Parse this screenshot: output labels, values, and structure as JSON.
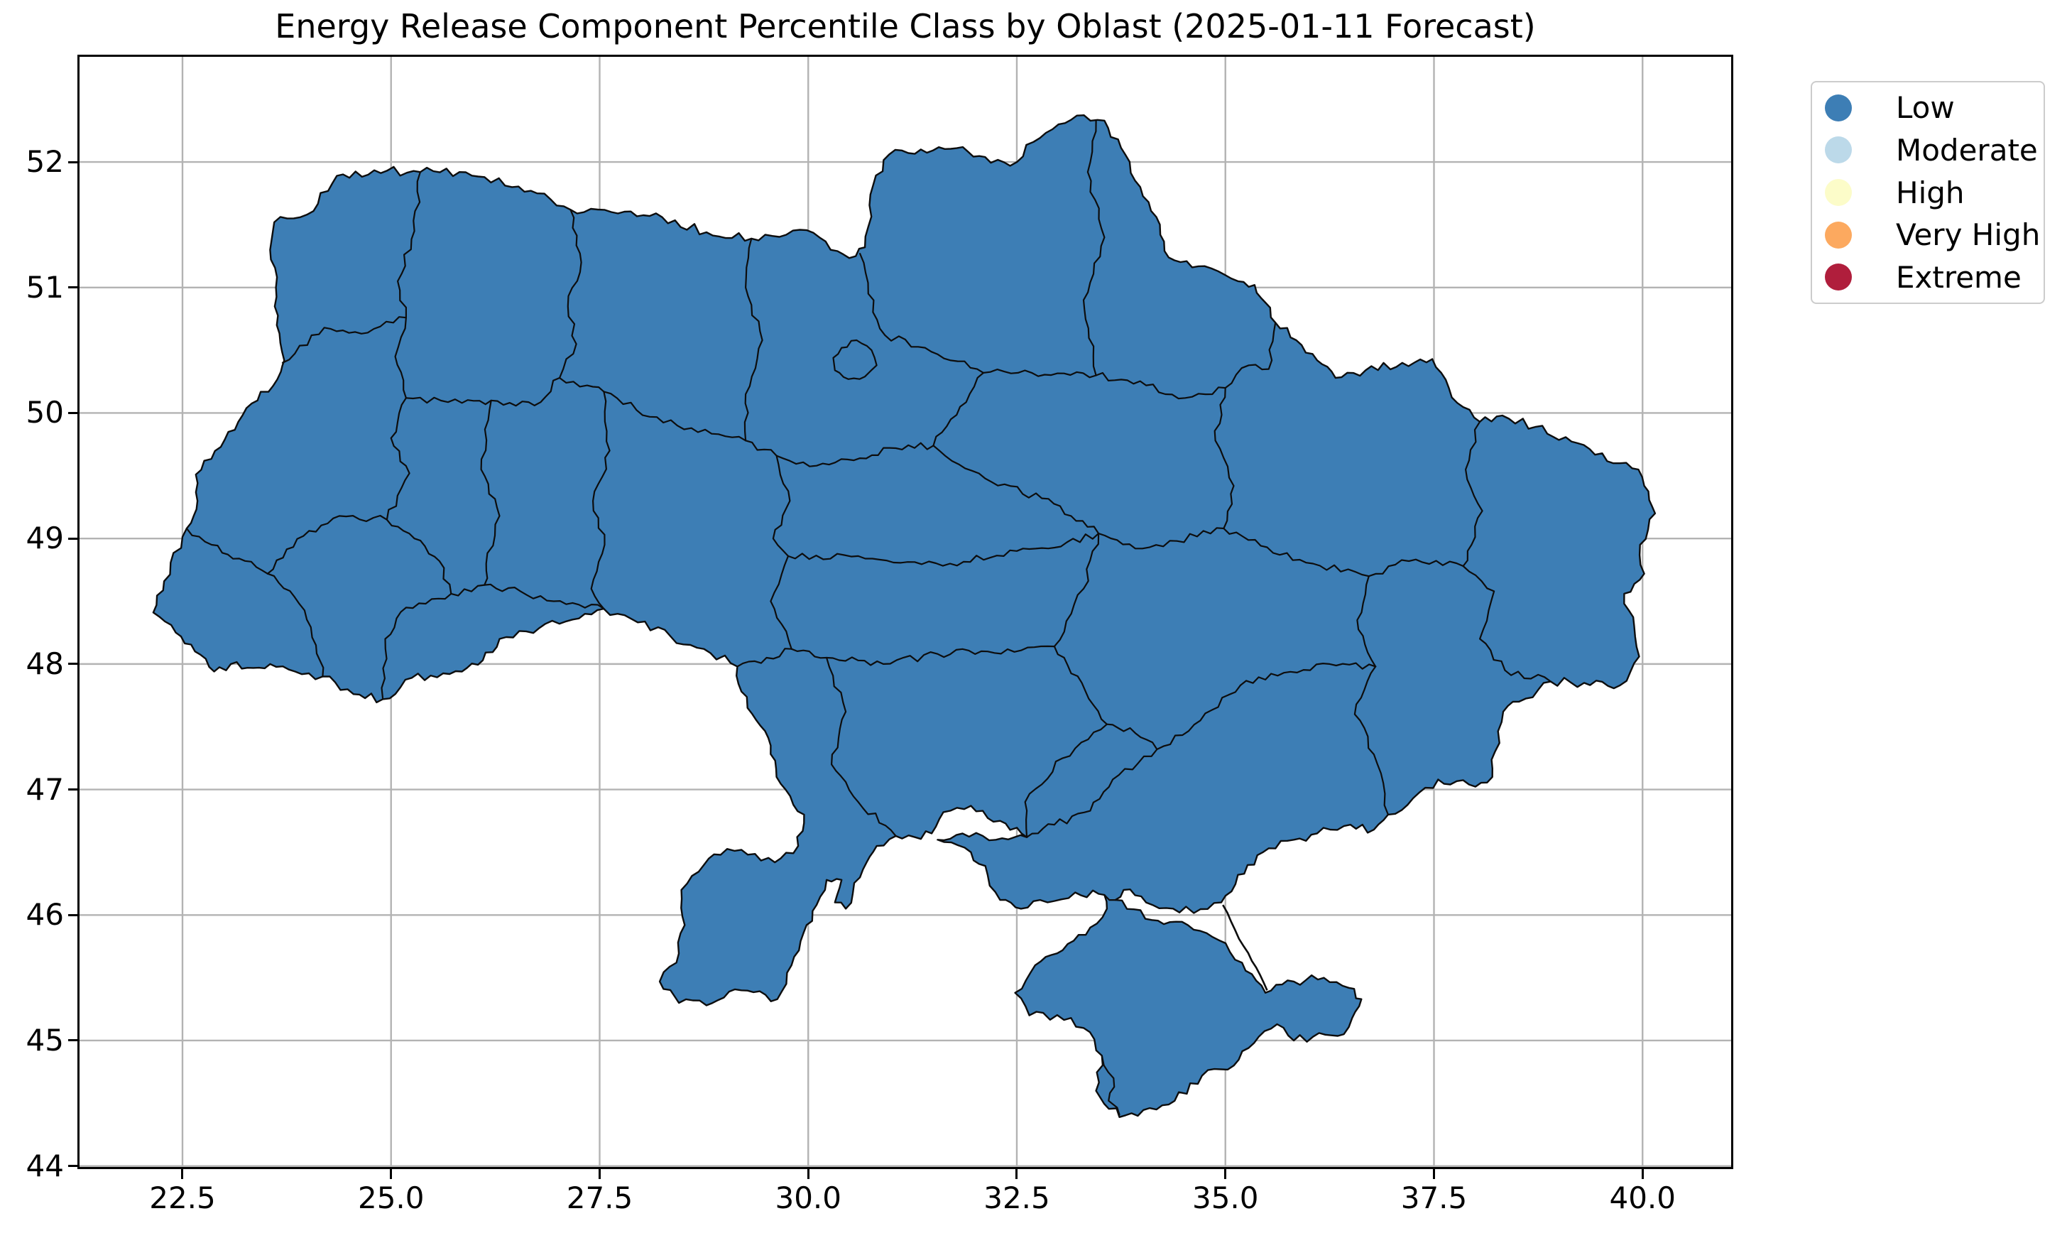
{
  "title": "Energy Release Component Percentile Class by Oblast (2025-01-11 Forecast)",
  "axes": {
    "x_ticks": [
      "22.5",
      "25.0",
      "27.5",
      "30.0",
      "32.5",
      "35.0",
      "37.5",
      "40.0"
    ],
    "y_ticks": [
      "44",
      "45",
      "46",
      "47",
      "48",
      "49",
      "50",
      "51",
      "52"
    ]
  },
  "legend": {
    "entries": [
      {
        "label": "Low",
        "color": "#3D7EB5"
      },
      {
        "label": "Moderate",
        "color": "#BCD9E9"
      },
      {
        "label": "High",
        "color": "#FCFCC9"
      },
      {
        "label": "Very High",
        "color": "#FCA95F"
      },
      {
        "label": "Extreme",
        "color": "#B01E3C"
      }
    ]
  },
  "map": {
    "fill": "#3D7EB5",
    "stroke": "#0d0d0d",
    "all_regions_class": "Low"
  },
  "style": {
    "grid_color": "#b3b3b3",
    "spine_color": "#000000",
    "background": "#ffffff"
  },
  "chart_data": {
    "type": "choropleth-map",
    "title": "Energy Release Component Percentile Class by Oblast (2025-01-11 Forecast)",
    "geography": "Ukraine oblasts",
    "forecast_date": "2025-01-11",
    "classes": [
      "Low",
      "Moderate",
      "High",
      "Very High",
      "Extreme"
    ],
    "class_colors": [
      "#3D7EB5",
      "#BCD9E9",
      "#FCFCC9",
      "#FCA95F",
      "#B01E3C"
    ],
    "all_regions_class": "Low",
    "x_ticks": [
      22.5,
      25.0,
      27.5,
      30.0,
      32.5,
      35.0,
      37.5,
      40.0
    ],
    "y_ticks": [
      44,
      45,
      46,
      47,
      48,
      49,
      50,
      51,
      52
    ],
    "xlim": [
      21.27,
      41.06
    ],
    "ylim": [
      43.99,
      52.84
    ],
    "grid": true,
    "legend_position": "outside upper right"
  }
}
